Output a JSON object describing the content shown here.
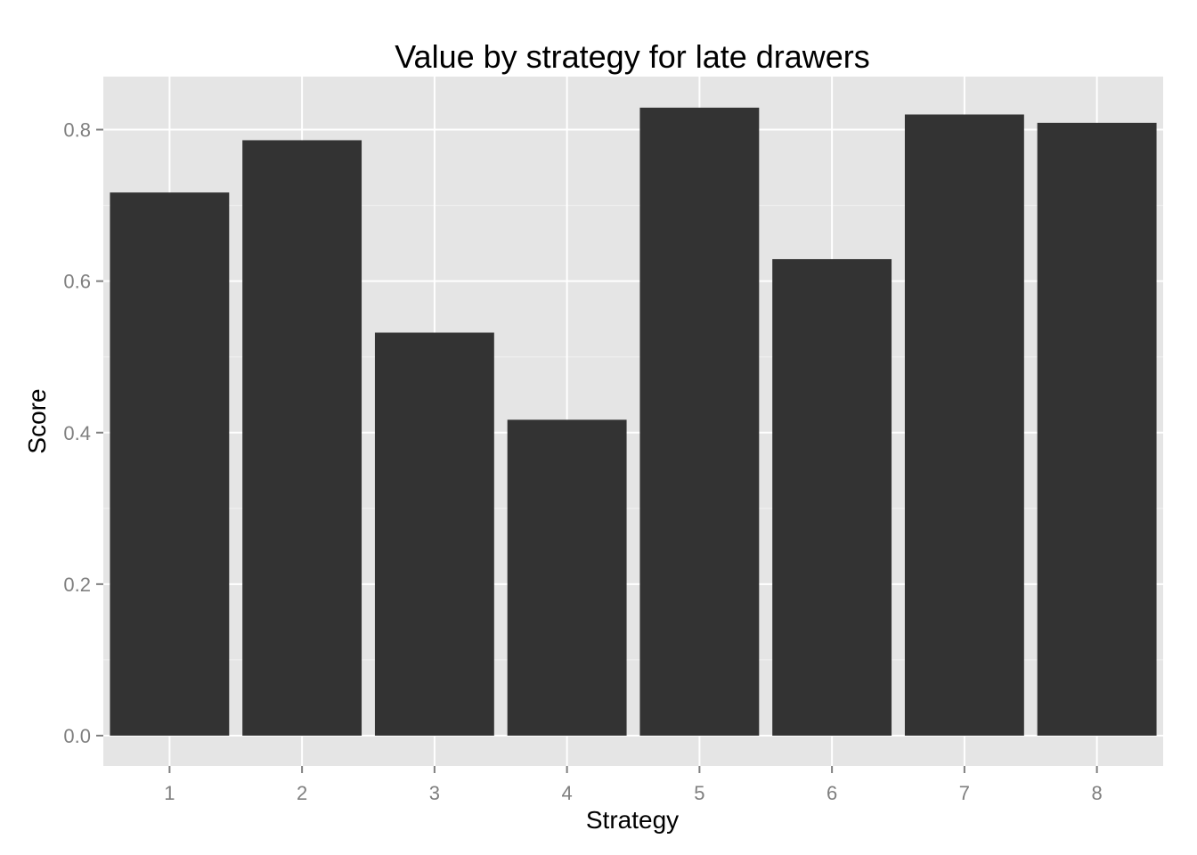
{
  "chart_data": {
    "type": "bar",
    "title": "Value by strategy for late drawers",
    "xlabel": "Strategy",
    "ylabel": "Score",
    "categories": [
      "1",
      "2",
      "3",
      "4",
      "5",
      "6",
      "7",
      "8"
    ],
    "values": [
      0.717,
      0.786,
      0.532,
      0.417,
      0.829,
      0.629,
      0.82,
      0.809
    ],
    "ylim": [
      -0.04,
      0.87
    ],
    "yticks": [
      0.0,
      0.2,
      0.4,
      0.6,
      0.8
    ],
    "ytick_labels": [
      "0.0",
      "0.2",
      "0.4",
      "0.6",
      "0.8"
    ],
    "grid": true,
    "legend": "none",
    "colors": {
      "panel": "#e5e5e5",
      "grid_major": "#ffffff",
      "grid_minor": "#f2f2f2",
      "bar": "#333333",
      "tick": "#7f7f7f"
    }
  }
}
